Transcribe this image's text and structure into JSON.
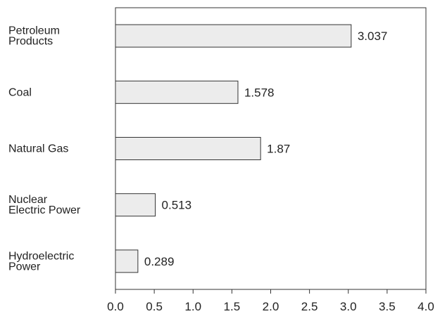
{
  "chart_data": {
    "type": "bar",
    "orientation": "horizontal",
    "title": "",
    "xlabel": "",
    "ylabel": "",
    "categories": [
      [
        "Petroleum",
        "Products"
      ],
      [
        "Coal"
      ],
      [
        "Natural Gas"
      ],
      [
        "Nuclear",
        "Electric Power"
      ],
      [
        "Hydroelectric",
        "Power"
      ]
    ],
    "values": [
      3.037,
      1.578,
      1.87,
      0.513,
      0.289
    ],
    "value_labels": [
      "3.037",
      "1.578",
      "1.87",
      "0.513",
      "0.289"
    ],
    "xlim": [
      0,
      4
    ],
    "x_ticks": [
      "0.0",
      "0.5",
      "1.0",
      "1.5",
      "2.0",
      "2.5",
      "3.0",
      "3.5",
      "4.0"
    ],
    "grid": false,
    "legend": "none",
    "colors": {
      "bar_fill": "#ececec",
      "bar_stroke": "#333333",
      "axis": "#333333"
    }
  }
}
